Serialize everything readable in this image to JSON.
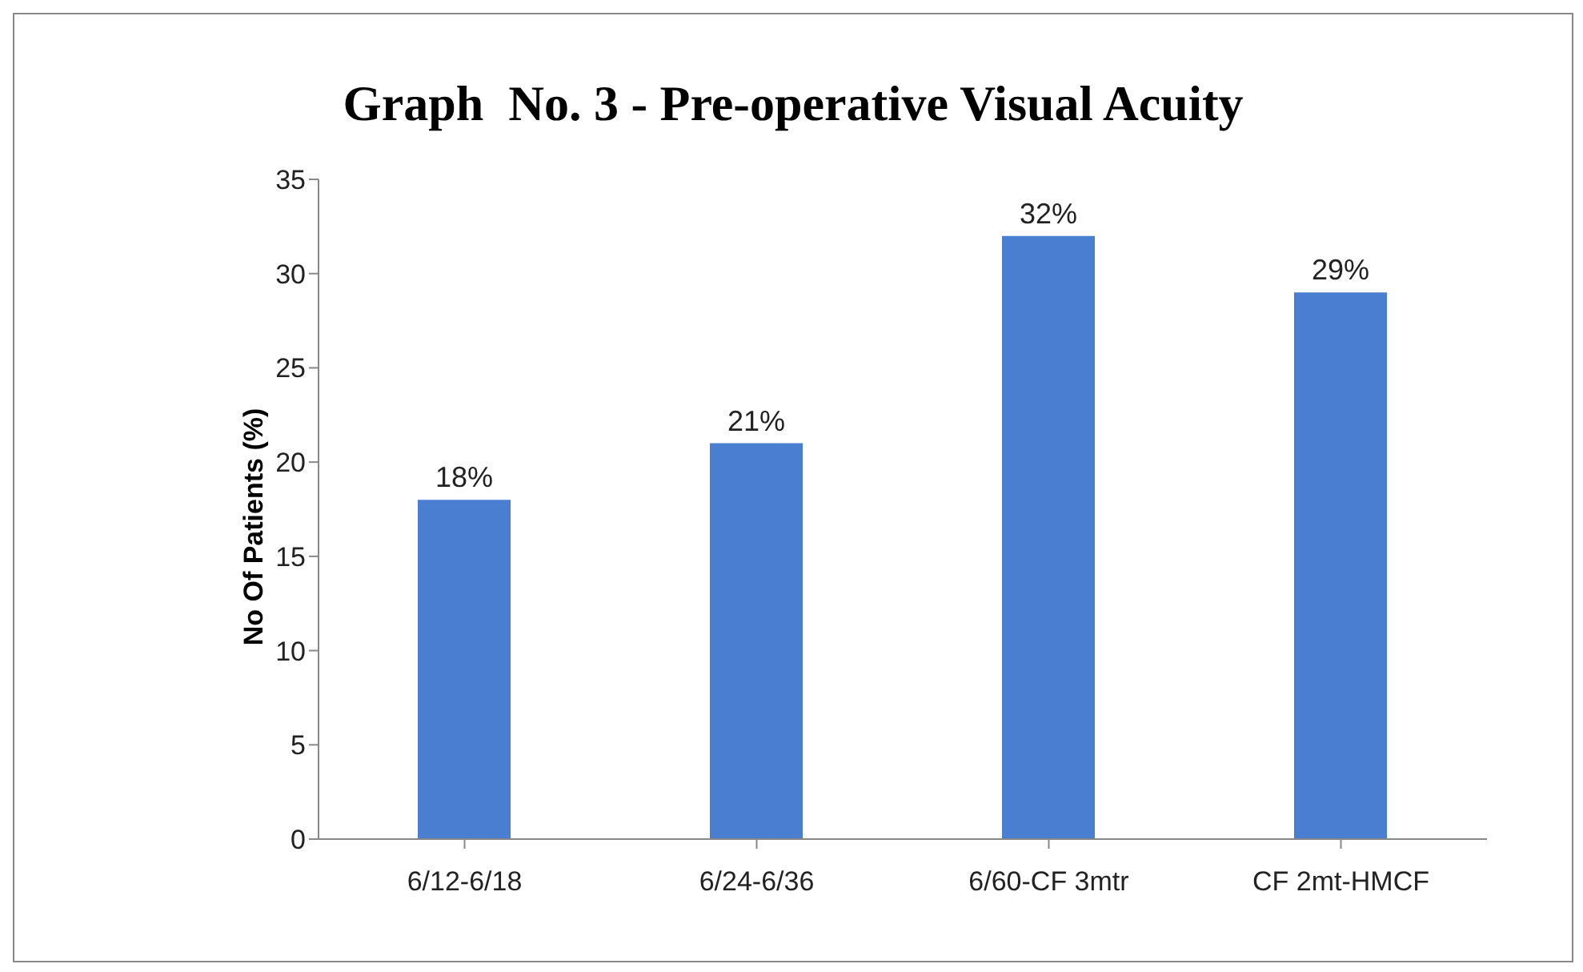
{
  "chart_data": {
    "type": "bar",
    "title": "Graph  No. 3 - Pre-operative Visual Acuity",
    "ylabel": "No Of Patients (%)",
    "categories": [
      "6/12-6/18",
      "6/24-6/36",
      "6/60-CF 3mtr",
      "CF 2mt-HMCF"
    ],
    "values": [
      18,
      21,
      32,
      29
    ],
    "color": "#4a7ed0",
    "value_labels": [
      "18%",
      "21%",
      "32%",
      "29%"
    ],
    "ylim": [
      0,
      35
    ],
    "yticks": [
      0,
      5,
      10,
      15,
      20,
      25,
      30,
      35
    ],
    "grid": false,
    "legend": false
  }
}
